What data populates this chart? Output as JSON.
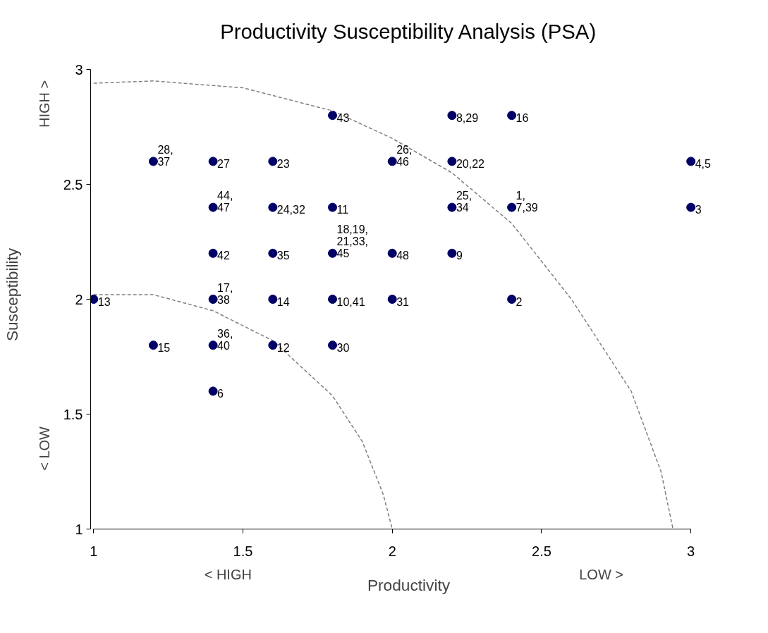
{
  "chart_data": {
    "type": "scatter",
    "title": "Productivity Susceptibility Analysis (PSA)",
    "xlabel": "Productivity",
    "ylabel": "Susceptibility",
    "annotations": [
      "< HIGH",
      "LOW >",
      "HIGH >",
      "< LOW",
      {
        "text": "28,\n37",
        "x": 1.2,
        "y": 2.6
      },
      {
        "text": "27",
        "x": 1.4,
        "y": 2.6
      },
      {
        "text": "23",
        "x": 1.6,
        "y": 2.6
      },
      {
        "text": "43",
        "x": 1.8,
        "y": 2.8
      },
      {
        "text": "26,\n46",
        "x": 2.0,
        "y": 2.6
      },
      {
        "text": "8,29",
        "x": 2.2,
        "y": 2.8
      },
      {
        "text": "16",
        "x": 2.4,
        "y": 2.8
      },
      {
        "text": "20,22",
        "x": 2.2,
        "y": 2.6
      },
      {
        "text": "4,5",
        "x": 3.0,
        "y": 2.6
      },
      {
        "text": "44,\n47",
        "x": 1.4,
        "y": 2.4
      },
      {
        "text": "24,32",
        "x": 1.6,
        "y": 2.4
      },
      {
        "text": "11",
        "x": 1.8,
        "y": 2.4
      },
      {
        "text": "25,\n34",
        "x": 2.2,
        "y": 2.4
      },
      {
        "text": "1,\n7,39",
        "x": 2.4,
        "y": 2.4
      },
      {
        "text": "3",
        "x": 3.0,
        "y": 2.4
      },
      {
        "text": "42",
        "x": 1.4,
        "y": 2.2
      },
      {
        "text": "35",
        "x": 1.6,
        "y": 2.2
      },
      {
        "text": "18,19,\n21,33,\n45",
        "x": 1.8,
        "y": 2.2
      },
      {
        "text": "48",
        "x": 2.0,
        "y": 2.2
      },
      {
        "text": "9",
        "x": 2.2,
        "y": 2.2
      },
      {
        "text": "13",
        "x": 1.0,
        "y": 2.0
      },
      {
        "text": "17,\n38",
        "x": 1.4,
        "y": 2.0
      },
      {
        "text": "14",
        "x": 1.6,
        "y": 2.0
      },
      {
        "text": "10,41",
        "x": 1.8,
        "y": 2.0
      },
      {
        "text": "31",
        "x": 2.0,
        "y": 2.0
      },
      {
        "text": "2",
        "x": 2.4,
        "y": 2.0
      },
      {
        "text": "15",
        "x": 1.2,
        "y": 1.8
      },
      {
        "text": "36,\n40",
        "x": 1.4,
        "y": 1.8
      },
      {
        "text": "12",
        "x": 1.6,
        "y": 1.8
      },
      {
        "text": "30",
        "x": 1.8,
        "y": 1.8
      },
      {
        "text": "6",
        "x": 1.4,
        "y": 1.6
      }
    ],
    "xlim": [
      1,
      3
    ],
    "ylim": [
      1,
      3
    ],
    "xticks": [
      1,
      1.5,
      2,
      2.5,
      3
    ],
    "yticks": [
      1,
      1.5,
      2,
      2.5,
      3
    ],
    "marker": "circle",
    "grid": false,
    "series": [
      {
        "type": "line",
        "color": "#808080",
        "line_style": "dashed",
        "marker": "none",
        "x": [
          1,
          1.2,
          1.4,
          1.6,
          1.8,
          1.9,
          1.97,
          2.0
        ],
        "values": [
          2.02,
          2.02,
          1.95,
          1.82,
          1.58,
          1.38,
          1.15,
          1.0
        ]
      },
      {
        "type": "line",
        "color": "#808080",
        "line_style": "dashed",
        "marker": "none",
        "x": [
          1,
          1.2,
          1.5,
          1.8,
          2.0,
          2.2,
          2.4,
          2.6,
          2.8,
          2.9,
          2.94
        ],
        "values": [
          2.94,
          2.95,
          2.92,
          2.82,
          2.7,
          2.55,
          2.33,
          2.0,
          1.6,
          1.25,
          1.0
        ]
      },
      {
        "color": "#000066",
        "x": [
          1.2,
          1.4,
          1.6,
          1.8,
          2.0,
          2.2,
          2.4,
          2.2,
          3.0,
          1.4,
          1.6,
          1.8,
          2.2,
          2.4,
          3.0,
          1.4,
          1.6,
          1.8,
          2.0,
          2.2,
          1.0,
          1.4,
          1.6,
          1.8,
          2.0,
          2.4,
          1.2,
          1.4,
          1.6,
          1.8,
          1.4
        ],
        "values": [
          2.6,
          2.6,
          2.6,
          2.8,
          2.6,
          2.8,
          2.8,
          2.6,
          2.6,
          2.4,
          2.4,
          2.4,
          2.4,
          2.4,
          2.4,
          2.2,
          2.2,
          2.2,
          2.2,
          2.2,
          2.0,
          2.0,
          2.0,
          2.0,
          2.0,
          2.0,
          1.8,
          1.8,
          1.8,
          1.8,
          1.6
        ]
      }
    ]
  }
}
